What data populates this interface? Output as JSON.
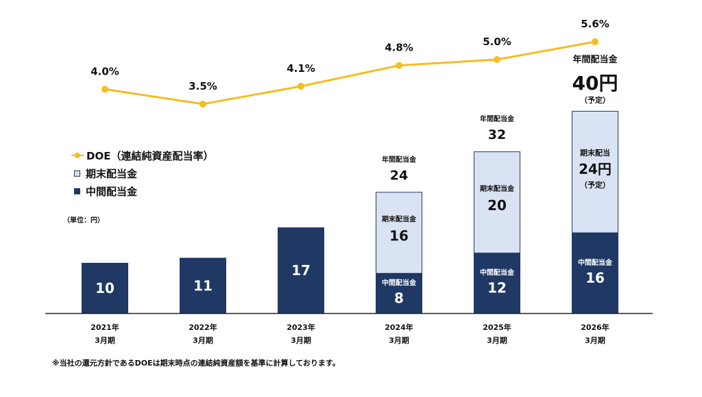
{
  "legend": {
    "doe": "DOE（連結純資産配当率）",
    "final": "期末配当金",
    "interim": "中間配当金"
  },
  "unit_label": "（単位：円）",
  "footnote": "※当社の還元方針であるDOEは期末時点の連結純資産額を基準に計算しております。",
  "colors": {
    "interim": "#1f3864",
    "final": "#dae3f3",
    "line": "#f5bd1f"
  },
  "chart_data": {
    "type": "bar",
    "stacked": true,
    "categories": [
      [
        "2021年",
        "3月期"
      ],
      [
        "2022年",
        "3月期"
      ],
      [
        "2023年",
        "3月期"
      ],
      [
        "2024年",
        "3月期"
      ],
      [
        "2025年",
        "3月期"
      ],
      [
        "2026年",
        "3月期"
      ]
    ],
    "series": [
      {
        "name": "中間配当金",
        "values": [
          10,
          11,
          17,
          8,
          12,
          16
        ],
        "labels": [
          "10",
          "11",
          "17",
          "8",
          "12",
          "16"
        ],
        "captions": [
          "",
          "",
          "",
          "中間配当金",
          "中間配当金",
          "中間配当金"
        ]
      },
      {
        "name": "期末配当金",
        "values": [
          0,
          0,
          0,
          16,
          20,
          24
        ],
        "labels": [
          "",
          "",
          "",
          "16",
          "20",
          "24円"
        ],
        "captions": [
          "",
          "",
          "",
          "期末配当金",
          "期末配当金",
          "期末配当"
        ],
        "notes": [
          "",
          "",
          "",
          "",
          "",
          "（予定）"
        ]
      }
    ],
    "totals": {
      "captions": [
        "",
        "",
        "",
        "年間配当金",
        "年間配当金",
        "年間配当金"
      ],
      "values": [
        "",
        "",
        "",
        "24",
        "32",
        "40円"
      ],
      "notes": [
        "",
        "",
        "",
        "",
        "",
        "（予定）"
      ]
    },
    "line": {
      "name": "DOE（連結純資産配当率）",
      "values": [
        4.0,
        3.5,
        4.1,
        4.8,
        5.0,
        5.6
      ],
      "labels": [
        "4.0%",
        "3.5%",
        "4.1%",
        "4.8%",
        "5.0%",
        "5.6%"
      ]
    },
    "ylim": [
      0,
      40
    ],
    "grid": false,
    "legend_position": "left"
  }
}
